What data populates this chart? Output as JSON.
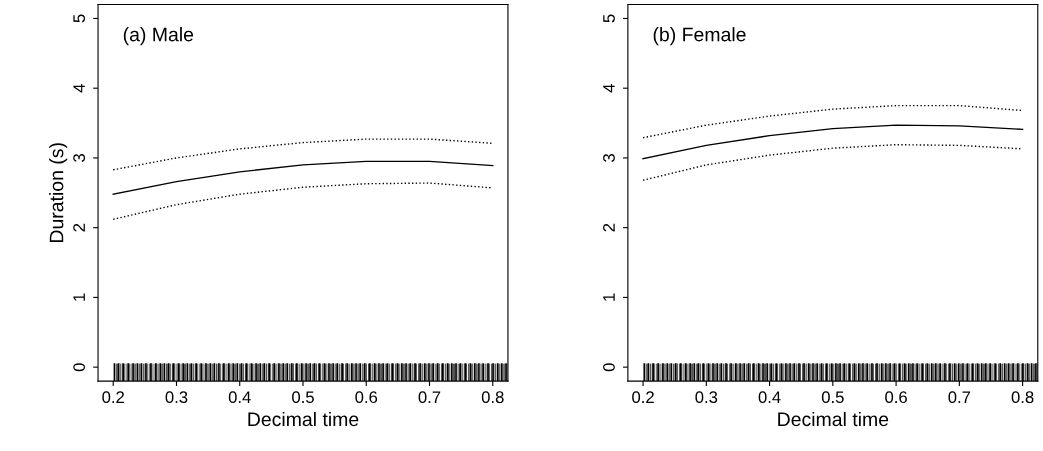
{
  "chart_data": [
    {
      "type": "line",
      "title": "(a) Male",
      "xlabel": "Decimal time",
      "ylabel": "Duration (s)",
      "x": [
        0.2,
        0.3,
        0.4,
        0.5,
        0.6,
        0.7,
        0.8
      ],
      "series": [
        {
          "color": "#000000",
          "line_style": "solid",
          "values": [
            2.48,
            2.66,
            2.8,
            2.9,
            2.95,
            2.95,
            2.89
          ]
        },
        {
          "color": "#000000",
          "line_style": "dotted",
          "values": [
            2.83,
            3.0,
            3.13,
            3.22,
            3.27,
            3.27,
            3.21
          ]
        },
        {
          "color": "#000000",
          "line_style": "dotted",
          "values": [
            2.12,
            2.33,
            2.48,
            2.58,
            2.63,
            2.64,
            2.57
          ]
        }
      ],
      "xlim": [
        0.176,
        0.824
      ],
      "ylim": [
        -0.2,
        5.2
      ],
      "xticks": [
        0.2,
        0.3,
        0.4,
        0.5,
        0.6,
        0.7,
        0.8
      ],
      "yticks": [
        0,
        1,
        2,
        3,
        4,
        5
      ]
    },
    {
      "type": "line",
      "title": "(b) Female",
      "xlabel": "Decimal time",
      "x": [
        0.2,
        0.3,
        0.4,
        0.5,
        0.6,
        0.7,
        0.8
      ],
      "series": [
        {
          "color": "#000000",
          "line_style": "solid",
          "values": [
            2.99,
            3.18,
            3.32,
            3.42,
            3.47,
            3.46,
            3.41
          ]
        },
        {
          "color": "#000000",
          "line_style": "dotted",
          "values": [
            3.29,
            3.47,
            3.6,
            3.7,
            3.75,
            3.75,
            3.68
          ]
        },
        {
          "color": "#000000",
          "line_style": "dotted",
          "values": [
            2.68,
            2.9,
            3.04,
            3.14,
            3.19,
            3.18,
            3.13
          ]
        }
      ],
      "xlim": [
        0.176,
        0.824
      ],
      "ylim": [
        -0.2,
        5.2
      ],
      "xticks": [
        0.2,
        0.3,
        0.4,
        0.5,
        0.6,
        0.7,
        0.8
      ],
      "yticks": [
        0,
        1,
        2,
        3,
        4,
        5
      ]
    }
  ]
}
